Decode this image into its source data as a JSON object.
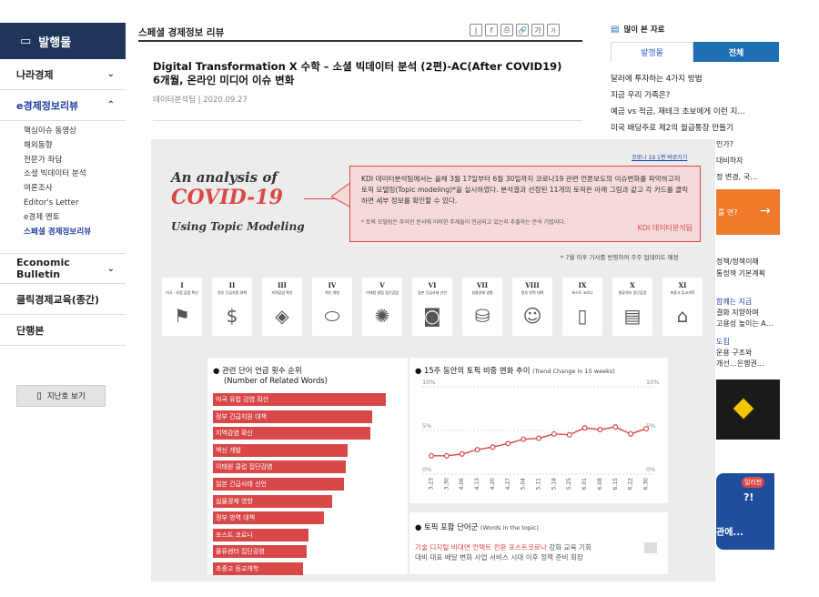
{
  "sidebar": {
    "header": "발행물",
    "items": [
      {
        "label": "나라경제",
        "chevron": "⌄"
      },
      {
        "label": "e경제정보리뷰",
        "chevron": "⌃"
      },
      {
        "label": "Economic Bulletin",
        "chevron": "⌄"
      },
      {
        "label": "클릭경제교육(종간)"
      },
      {
        "label": "단행본"
      }
    ],
    "subitems": [
      "핵심이슈 동영상",
      "해외동향",
      "전문가 좌담",
      "소셜 빅데이터 분석",
      "여론조사",
      "Editor's Letter",
      "e경제 멘토",
      "스페셜 경제정보리뷰"
    ],
    "archive_button": "지난호 보기"
  },
  "main": {
    "page_title": "스페셜 경제정보 리뷰",
    "share_buttons": [
      "f",
      "⎙",
      "🔗",
      "가",
      "가"
    ],
    "article_title": "Digital Transformation X 수학 – 소셜 빅데이터 분석 (2편)-AC(After COVID19) 6개월, 온라인 미디어 이슈 변화",
    "article_meta": "데이터분석팀 | 2020.09.27"
  },
  "infographic": {
    "quick_link": "코로나 19 1편 바로가기",
    "heading_line1": "An analysis of",
    "heading_line2": "COVID-19",
    "heading_line3": "Using Topic Modeling",
    "speech": "KDI 데이터분석팀에서는 올해 3월 17일부터 6월 30일까지 코로나19 관련 언론보도의 이슈변화를 파악하고자 토픽 모델링(Topic modeling)*을 실시하였다. 분석결과 선정된 11개의 토픽은 아래 그림과 같고 각 카드를 클릭하면 세부 정보를 확인할 수 있다.",
    "speech_note": "* 토픽 모델링은 주어진 문서에 어떠한 주제들이 언급되고 있는지 추출하는 분석 기법이다.",
    "speech_source": "KDI 데이터분석팀",
    "update_note": "* 7월 이후 기사를 반영하여 주주 업데이트 예정",
    "topics": [
      {
        "num": "I",
        "label": "미국 · 유럽 감염 확산",
        "icon": "flag-icon"
      },
      {
        "num": "II",
        "label": "정부 긴급지원 대책",
        "icon": "money-icon"
      },
      {
        "num": "III",
        "label": "지역감염 확산",
        "icon": "map-icon"
      },
      {
        "num": "IV",
        "label": "백신 개발",
        "icon": "pill-icon"
      },
      {
        "num": "V",
        "label": "이태원 클럽 집단감염",
        "icon": "disco-icon"
      },
      {
        "num": "VI",
        "label": "일본 긴급사태 선언",
        "icon": "japan-flag-icon"
      },
      {
        "num": "VII",
        "label": "실물경제 영향",
        "icon": "coins-icon"
      },
      {
        "num": "VIII",
        "label": "정부 방역 대책",
        "icon": "doctor-icon"
      },
      {
        "num": "IX",
        "label": "포스트 코로나",
        "icon": "phone-icon"
      },
      {
        "num": "X",
        "label": "물류센터 집단감염",
        "icon": "box-icon"
      },
      {
        "num": "XI",
        "label": "초중고 등교개학",
        "icon": "school-icon"
      }
    ],
    "ranking_title": "관련 단어 언급 횟수 순위",
    "ranking_subtitle": "(Number of Related Words)",
    "ranking_bars": [
      {
        "label": "미국 유럽 감염 확산",
        "share": 1.0
      },
      {
        "label": "정부 긴급지원 대책",
        "share": 0.92
      },
      {
        "label": "지역감염 확산",
        "share": 0.91
      },
      {
        "label": "백신 개발",
        "share": 0.78
      },
      {
        "label": "이태원 클럽 집단감염",
        "share": 0.77
      },
      {
        "label": "일본 긴급사태 선언",
        "share": 0.76
      },
      {
        "label": "실물경제 영향",
        "share": 0.69
      },
      {
        "label": "정부 방역 대책",
        "share": 0.64
      },
      {
        "label": "포스트 코로나",
        "share": 0.55
      },
      {
        "label": "물류센터 집단감염",
        "share": 0.54
      },
      {
        "label": "초중고 등교개학",
        "share": 0.52
      }
    ],
    "trend_title": "15주 동안의 토픽 비중 변화 추이",
    "trend_subtitle": "(Trend Change in 15 weeks)",
    "words_title": "토픽 포함 단어군",
    "words_subtitle": "(Words in the topic)",
    "words_red": [
      "기술",
      "디지털",
      "비대면",
      "언택트",
      "전환",
      "포스트코로나"
    ],
    "words_gray1": [
      "강화",
      "교육",
      "기회"
    ],
    "words_gray2": [
      "대비",
      "대표",
      "배달",
      "변화",
      "사업",
      "서비스",
      "시대",
      "이후",
      "정책",
      "준비",
      "회장"
    ]
  },
  "chart_data": {
    "type": "line",
    "title": "15주 동안의 토픽 비중 변화 추이",
    "x": [
      "3.23",
      "3.30",
      "4.06",
      "4.13",
      "4.20",
      "4.27",
      "5.04",
      "5.11",
      "5.18",
      "5.25",
      "6.01",
      "6.08",
      "6.15",
      "6.22",
      "6.30"
    ],
    "series": [
      {
        "values": [
          2.1,
          2.1,
          2.3,
          2.8,
          3.1,
          3.5,
          4.0,
          4.1,
          4.6,
          4.5,
          5.3,
          5.1,
          5.4,
          4.6,
          5.2
        ]
      }
    ],
    "ytick_labels": [
      "0%",
      "5%",
      "10%"
    ],
    "ylim": [
      0,
      10
    ],
    "color": "#d94848"
  },
  "right_sidebar": {
    "title": "많이 본 자료",
    "tabs": [
      "발행물",
      "전체"
    ],
    "items": [
      "달러에 투자하는 4가지 방법",
      "지금 우리 가족은?",
      "예금 vs 적금, 재테크 초보에게 이런 지…",
      "미국 배당주로 제2의 월급통장 만들기"
    ],
    "fragments": [
      "인가?",
      "대비하자",
      "정 변경, 국…",
      "를 면?",
      "정책/정책이해",
      "통정책 기본계획",
      "함께는 지금",
      "결화 지향하며",
      "고용성 높이는 A…",
      "도집",
      "운용 구조와",
      "개선…은행권…"
    ],
    "banner_badge": "일러판"
  }
}
